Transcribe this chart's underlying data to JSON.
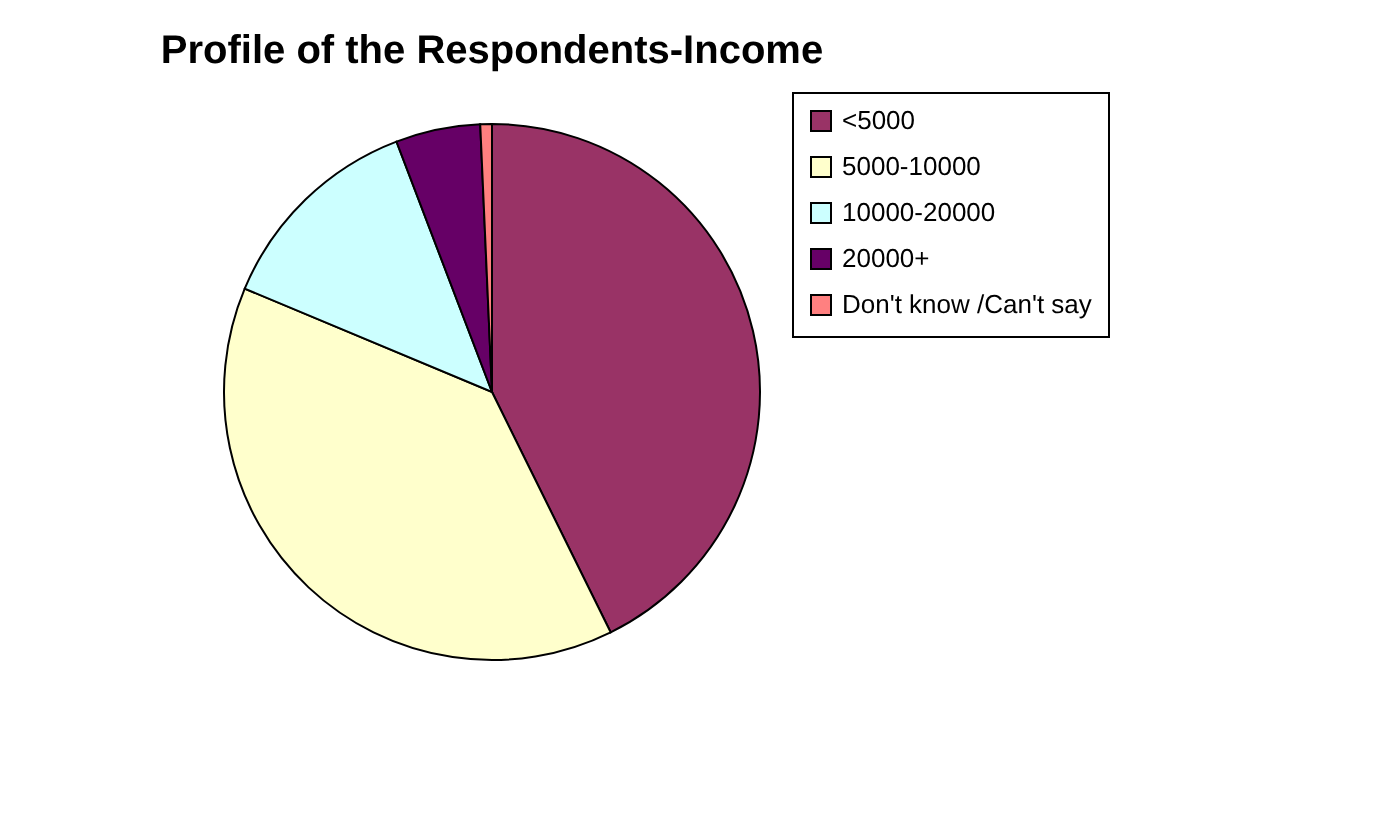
{
  "chart_data": {
    "type": "pie",
    "title": "Profile of the Respondents-Income",
    "categories": [
      "<5000",
      "5000-10000",
      "10000-20000",
      "20000+",
      "Don't know /Can't say"
    ],
    "values": [
      42.7,
      38.6,
      12.9,
      5.1,
      0.7
    ],
    "colors": [
      "#993366",
      "#ffffcc",
      "#ccffff",
      "#660066",
      "#ff8080"
    ],
    "legend": "right"
  }
}
